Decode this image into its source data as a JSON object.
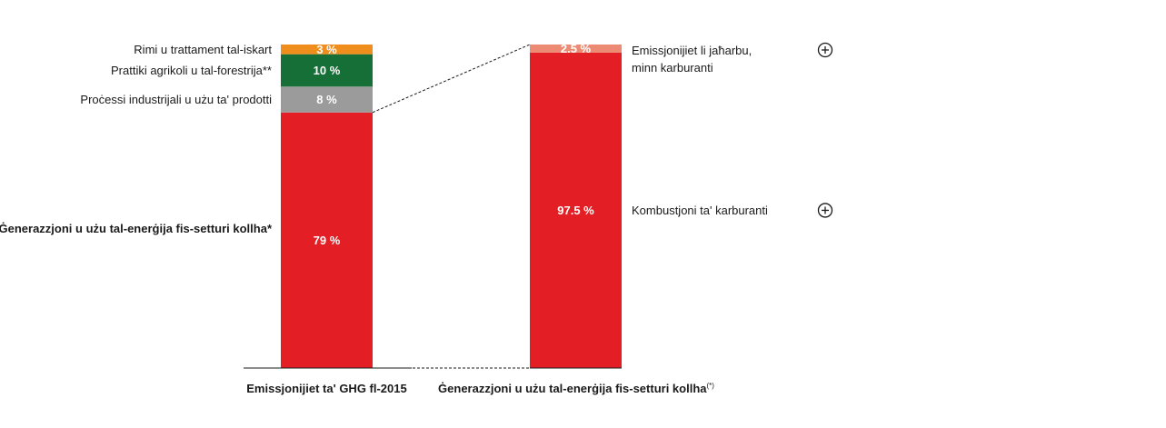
{
  "chart_data": [
    {
      "type": "bar",
      "stacked": true,
      "x": [
        "Emissjonijiet ta' GHG fl-2015"
      ],
      "series": [
        {
          "name": "Ġenerazzjoni u użu tal-enerġija fis-setturi kollha*",
          "value": 79,
          "label": "79 %",
          "color": "#e31e24"
        },
        {
          "name": "Proċessi industrijali u użu ta' prodotti",
          "value": 8,
          "label": "8 %",
          "color": "#9b9b9b"
        },
        {
          "name": "Prattiki agrikoli u tal-forestrija**",
          "value": 10,
          "label": "10 %",
          "color": "#166f36"
        },
        {
          "name": "Rimi u trattament tal-iskart",
          "value": 3,
          "label": "3 %",
          "color": "#ef8e1c"
        }
      ]
    },
    {
      "type": "bar",
      "stacked": true,
      "x": [
        "Ġenerazzjoni u użu tal-enerġija fis-setturi kollha"
      ],
      "x_superscript": "(*)",
      "series": [
        {
          "name": "Kombustjoni ta' karburanti",
          "value": 97.5,
          "label": "97.5 %",
          "color": "#e31e24"
        },
        {
          "name": "Emissjonijiet li jaħarbu, minn karburanti",
          "name_lines": [
            "Emissjonijiet li jaħarbu,",
            "minn karburanti"
          ],
          "value": 2.5,
          "label": "2.5 %",
          "color": "#ec8a73"
        }
      ]
    }
  ],
  "icons": {
    "expand": "plus-circle-icon"
  }
}
